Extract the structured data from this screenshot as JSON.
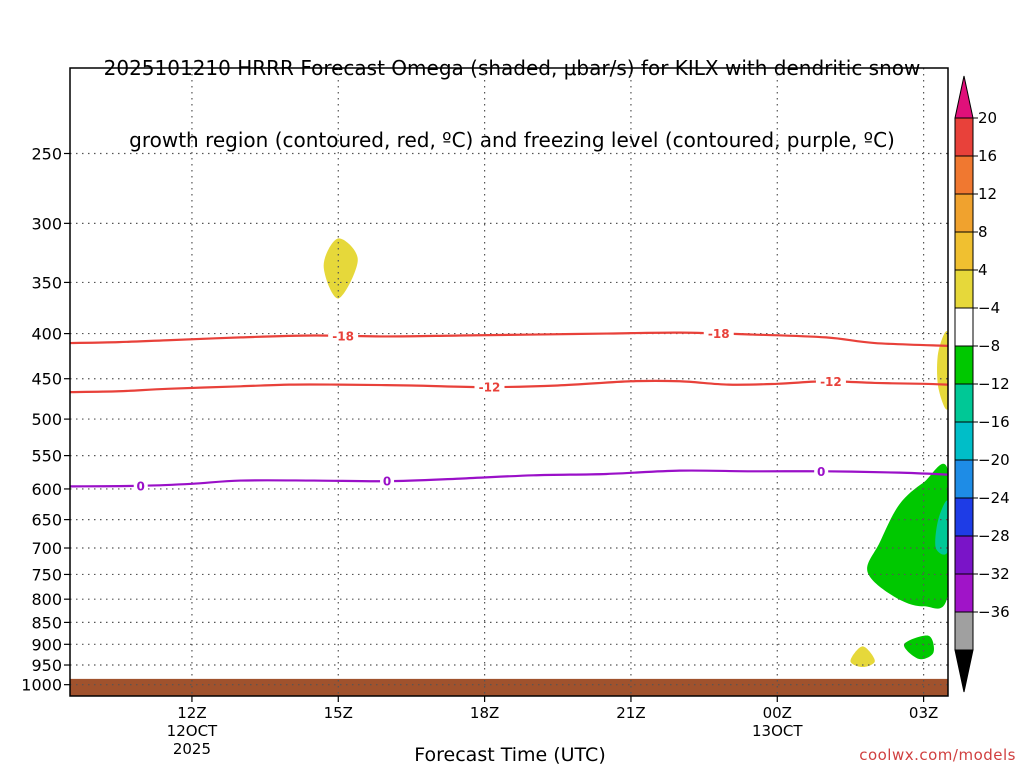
{
  "title_line1": "2025101210 HRRR Forecast Omega (shaded, μbar/s) for KILX with dendritic snow",
  "title_line2": "growth region (contoured, red, ºC) and freezing level (contoured, purple, ºC)",
  "credit": "coolwx.com/models",
  "chart_data": {
    "type": "contour",
    "xlabel": "Forecast Time (UTC)",
    "x_range_hours": [
      9.5,
      27.5
    ],
    "x_ticks": [
      {
        "hour": 12,
        "label": "12Z",
        "sub1": "12OCT",
        "sub2": "2025"
      },
      {
        "hour": 15,
        "label": "15Z",
        "sub1": "",
        "sub2": ""
      },
      {
        "hour": 18,
        "label": "18Z",
        "sub1": "",
        "sub2": ""
      },
      {
        "hour": 21,
        "label": "21Z",
        "sub1": "",
        "sub2": ""
      },
      {
        "hour": 24,
        "label": "00Z",
        "sub1": "13OCT",
        "sub2": ""
      },
      {
        "hour": 27,
        "label": "03Z",
        "sub1": "",
        "sub2": ""
      }
    ],
    "y_axis": {
      "scale": "log",
      "reversed": true,
      "range_hpa": [
        200,
        1030
      ]
    },
    "y_ticks": [
      250,
      300,
      350,
      400,
      450,
      500,
      550,
      600,
      650,
      700,
      750,
      800,
      850,
      900,
      950,
      1000
    ],
    "grid": "dotted",
    "ground": {
      "from_hpa": 985,
      "to_hpa": 1030,
      "color": "#a0522d"
    },
    "contours": [
      {
        "kind": "temperature",
        "color": "#e8413a",
        "label": "-18",
        "points": [
          [
            9.5,
            410
          ],
          [
            10.5,
            409
          ],
          [
            11.5,
            407
          ],
          [
            13,
            404
          ],
          [
            14.5,
            402
          ],
          [
            16,
            403
          ],
          [
            17.5,
            402
          ],
          [
            19,
            401
          ],
          [
            20.5,
            400
          ],
          [
            22,
            399
          ],
          [
            23.5,
            401
          ],
          [
            25,
            404
          ],
          [
            26,
            410
          ],
          [
            27.5,
            413
          ]
        ],
        "label_at": [
          15.1,
          22.8
        ]
      },
      {
        "kind": "temperature",
        "color": "#e8413a",
        "label": "-12",
        "points": [
          [
            9.5,
            466
          ],
          [
            10.5,
            465
          ],
          [
            11.5,
            462
          ],
          [
            13,
            459
          ],
          [
            14,
            457
          ],
          [
            15,
            457
          ],
          [
            16.5,
            458
          ],
          [
            18,
            460
          ],
          [
            19.5,
            458
          ],
          [
            21,
            453
          ],
          [
            22,
            453
          ],
          [
            23,
            457
          ],
          [
            24,
            456
          ],
          [
            25,
            453
          ],
          [
            26,
            455
          ],
          [
            27,
            456
          ],
          [
            27.5,
            457
          ]
        ],
        "label_at": [
          18.1,
          25.1
        ]
      },
      {
        "kind": "freezing",
        "color": "#9a10c8",
        "label": "0",
        "points": [
          [
            9.5,
            596
          ],
          [
            11,
            595
          ],
          [
            12,
            592
          ],
          [
            13,
            587
          ],
          [
            14.5,
            587
          ],
          [
            16,
            588
          ],
          [
            17.5,
            584
          ],
          [
            19,
            579
          ],
          [
            20.5,
            577
          ],
          [
            22,
            572
          ],
          [
            23.5,
            573
          ],
          [
            25,
            573
          ],
          [
            26.5,
            575
          ],
          [
            27.5,
            578
          ]
        ],
        "label_at": [
          10.95,
          16.0,
          24.9
        ]
      }
    ],
    "shaded_regions": [
      {
        "value_range": "4 to 8",
        "color": "#e6d83a",
        "points": [
          [
            15,
            312
          ],
          [
            15.4,
            330
          ],
          [
            15.0,
            365
          ],
          [
            14.7,
            335
          ]
        ]
      },
      {
        "value_range": "4 to 8",
        "color": "#e6d83a",
        "points": [
          [
            27.5,
            400
          ],
          [
            27.3,
            420
          ],
          [
            27.3,
            460
          ],
          [
            27.5,
            485
          ]
        ]
      },
      {
        "value_range": "4 to 8",
        "color": "#e6d83a",
        "points": [
          [
            25.75,
            905
          ],
          [
            26.0,
            940
          ],
          [
            25.75,
            955
          ],
          [
            25.5,
            940
          ]
        ]
      },
      {
        "value_range": "-8 to -4",
        "color": "#00c800",
        "points": [
          [
            27.5,
            572
          ],
          [
            27.0,
            590
          ],
          [
            26.5,
            625
          ],
          [
            26.1,
            690
          ],
          [
            25.85,
            745
          ],
          [
            26.4,
            795
          ],
          [
            27.0,
            815
          ],
          [
            27.5,
            790
          ]
        ]
      },
      {
        "value_range": "-12 to -8",
        "color": "#00c896",
        "points": [
          [
            27.5,
            620
          ],
          [
            27.3,
            650
          ],
          [
            27.25,
            700
          ],
          [
            27.5,
            705
          ]
        ]
      },
      {
        "value_range": "-8 to -4",
        "color": "#00c800",
        "points": [
          [
            27.1,
            880
          ],
          [
            26.6,
            900
          ],
          [
            26.9,
            935
          ],
          [
            27.2,
            920
          ]
        ]
      }
    ],
    "colorbar": {
      "labels": [
        "20",
        "16",
        "12",
        "8",
        "4",
        "−4",
        "−8",
        "−12",
        "−16",
        "−20",
        "−24",
        "−28",
        "−32",
        "−36"
      ],
      "top_arrow_color": "#e0107a",
      "bottom_arrow_color": "#000000",
      "segments": [
        "#e8413a",
        "#f07830",
        "#f0a22e",
        "#f0c030",
        "#e6d83a",
        "#ffffff",
        "#00c800",
        "#00c896",
        "#00bec8",
        "#1e8ce6",
        "#1e3ce6",
        "#7a14c8",
        "#a014c8",
        "#a0a0a0"
      ]
    }
  }
}
